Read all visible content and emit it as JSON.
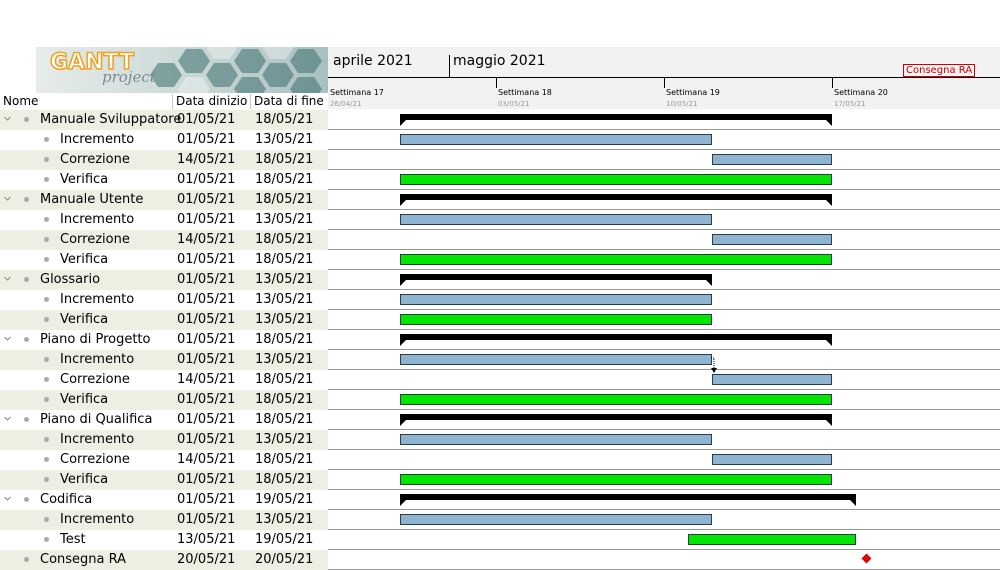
{
  "logo": {
    "brand": "GANTT",
    "subtitle": "project"
  },
  "columns": {
    "name": "Nome",
    "start": "Data dinizio",
    "end": "Data di fine"
  },
  "timeline": {
    "months": [
      "aprile 2021",
      "maggio 2021"
    ],
    "weeks": [
      {
        "label": "Settimana  17",
        "date": "26/04/21"
      },
      {
        "label": "Settimana  18",
        "date": "03/05/21"
      },
      {
        "label": "Settimana  19",
        "date": "10/05/21"
      },
      {
        "label": "Settimana  20",
        "date": "17/05/21"
      }
    ],
    "milestone_label": "Consegna RA"
  },
  "colors": {
    "summary": "#000000",
    "task_blue": "#8fb4cf",
    "task_green": "#00e600",
    "milestone": "#e00000",
    "alt_row": "#eeeee2"
  },
  "tasks": [
    {
      "name": "Manuale Sviluppatore",
      "start": "01/05/21",
      "end": "18/05/21",
      "level": 0,
      "kind": "summary"
    },
    {
      "name": "Incremento",
      "start": "01/05/21",
      "end": "13/05/21",
      "level": 1,
      "kind": "blue"
    },
    {
      "name": "Correzione",
      "start": "14/05/21",
      "end": "18/05/21",
      "level": 1,
      "kind": "blue"
    },
    {
      "name": "Verifica",
      "start": "01/05/21",
      "end": "18/05/21",
      "level": 1,
      "kind": "green"
    },
    {
      "name": "Manuale Utente",
      "start": "01/05/21",
      "end": "18/05/21",
      "level": 0,
      "kind": "summary"
    },
    {
      "name": "Incremento",
      "start": "01/05/21",
      "end": "13/05/21",
      "level": 1,
      "kind": "blue"
    },
    {
      "name": "Correzione",
      "start": "14/05/21",
      "end": "18/05/21",
      "level": 1,
      "kind": "blue"
    },
    {
      "name": "Verifica",
      "start": "01/05/21",
      "end": "18/05/21",
      "level": 1,
      "kind": "green"
    },
    {
      "name": "Glossario",
      "start": "01/05/21",
      "end": "13/05/21",
      "level": 0,
      "kind": "summary"
    },
    {
      "name": "Incremento",
      "start": "01/05/21",
      "end": "13/05/21",
      "level": 1,
      "kind": "blue"
    },
    {
      "name": "Verifica",
      "start": "01/05/21",
      "end": "13/05/21",
      "level": 1,
      "kind": "green"
    },
    {
      "name": "Piano di Progetto",
      "start": "01/05/21",
      "end": "18/05/21",
      "level": 0,
      "kind": "summary"
    },
    {
      "name": "Incremento",
      "start": "01/05/21",
      "end": "13/05/21",
      "level": 1,
      "kind": "blue"
    },
    {
      "name": "Correzione",
      "start": "14/05/21",
      "end": "18/05/21",
      "level": 1,
      "kind": "blue"
    },
    {
      "name": "Verifica",
      "start": "01/05/21",
      "end": "18/05/21",
      "level": 1,
      "kind": "green"
    },
    {
      "name": "Piano di Qualifica",
      "start": "01/05/21",
      "end": "18/05/21",
      "level": 0,
      "kind": "summary"
    },
    {
      "name": "Incremento",
      "start": "01/05/21",
      "end": "13/05/21",
      "level": 1,
      "kind": "blue"
    },
    {
      "name": "Correzione",
      "start": "14/05/21",
      "end": "18/05/21",
      "level": 1,
      "kind": "blue"
    },
    {
      "name": "Verifica",
      "start": "01/05/21",
      "end": "18/05/21",
      "level": 1,
      "kind": "green"
    },
    {
      "name": "Codifica",
      "start": "01/05/21",
      "end": "19/05/21",
      "level": 0,
      "kind": "summary"
    },
    {
      "name": "Incremento",
      "start": "01/05/21",
      "end": "13/05/21",
      "level": 1,
      "kind": "blue"
    },
    {
      "name": "Test",
      "start": "13/05/21",
      "end": "19/05/21",
      "level": 1,
      "kind": "green"
    },
    {
      "name": "Consegna RA",
      "start": "20/05/21",
      "end": "20/05/21",
      "level": 0,
      "kind": "milestone"
    }
  ]
}
